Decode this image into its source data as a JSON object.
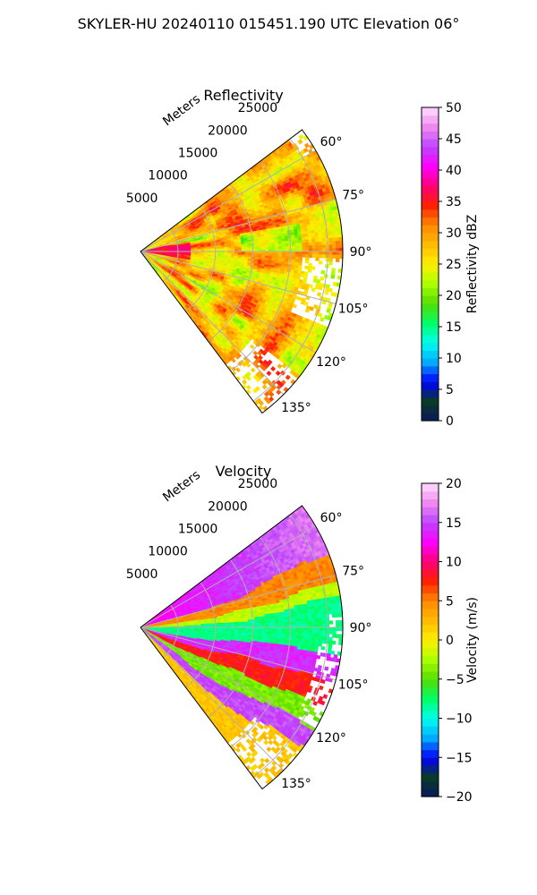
{
  "figure_title": "SKYLER-HU  20240110  015451.190 UTC Elevation 06°",
  "chart_data": [
    {
      "type": "heatmap",
      "subtype": "polar-sector radar sweep",
      "title": "Reflectivity",
      "radial_label": "Meters",
      "range_ticks": [
        "5000",
        "10000",
        "15000",
        "20000",
        "25000"
      ],
      "range_max_m": 27000,
      "azimuth_ticks": [
        "60°",
        "75°",
        "90°",
        "105°",
        "120°",
        "135°"
      ],
      "azimuth_range_deg": [
        53,
        143
      ],
      "colorbar": {
        "label": "Reflectivity dBZ",
        "min": 0,
        "max": 50,
        "ticks": [
          "0",
          "5",
          "10",
          "15",
          "20",
          "25",
          "30",
          "35",
          "40",
          "45",
          "50"
        ],
        "colors": [
          "#0a1a5c",
          "#0a3a2a",
          "#0000ff",
          "#00aaff",
          "#00ffee",
          "#00ff66",
          "#55dd00",
          "#aaff00",
          "#ffee00",
          "#ffbb00",
          "#ff8800",
          "#ff2200",
          "#ff0077",
          "#ff00ff",
          "#bb44ff",
          "#ee88ee",
          "#ffddff"
        ]
      }
    },
    {
      "type": "heatmap",
      "subtype": "polar-sector radar sweep",
      "title": "Velocity",
      "radial_label": "Meters",
      "range_ticks": [
        "5000",
        "10000",
        "15000",
        "20000",
        "25000"
      ],
      "range_max_m": 27000,
      "azimuth_ticks": [
        "60°",
        "75°",
        "90°",
        "105°",
        "120°",
        "135°"
      ],
      "azimuth_range_deg": [
        53,
        143
      ],
      "colorbar": {
        "label": "Velocity (m/s)",
        "min": -20,
        "max": 20,
        "ticks": [
          "−20",
          "−15",
          "−10",
          "−5",
          "0",
          "5",
          "10",
          "15",
          "20"
        ],
        "colors": [
          "#0a1a5c",
          "#0a3a2a",
          "#0000ff",
          "#00aaff",
          "#00ffee",
          "#00ff66",
          "#55dd00",
          "#aaff00",
          "#ffee00",
          "#ffbb00",
          "#ff8800",
          "#ff2200",
          "#ff0077",
          "#ff00ff",
          "#bb44ff",
          "#ee88ee",
          "#ffddff"
        ]
      }
    }
  ]
}
